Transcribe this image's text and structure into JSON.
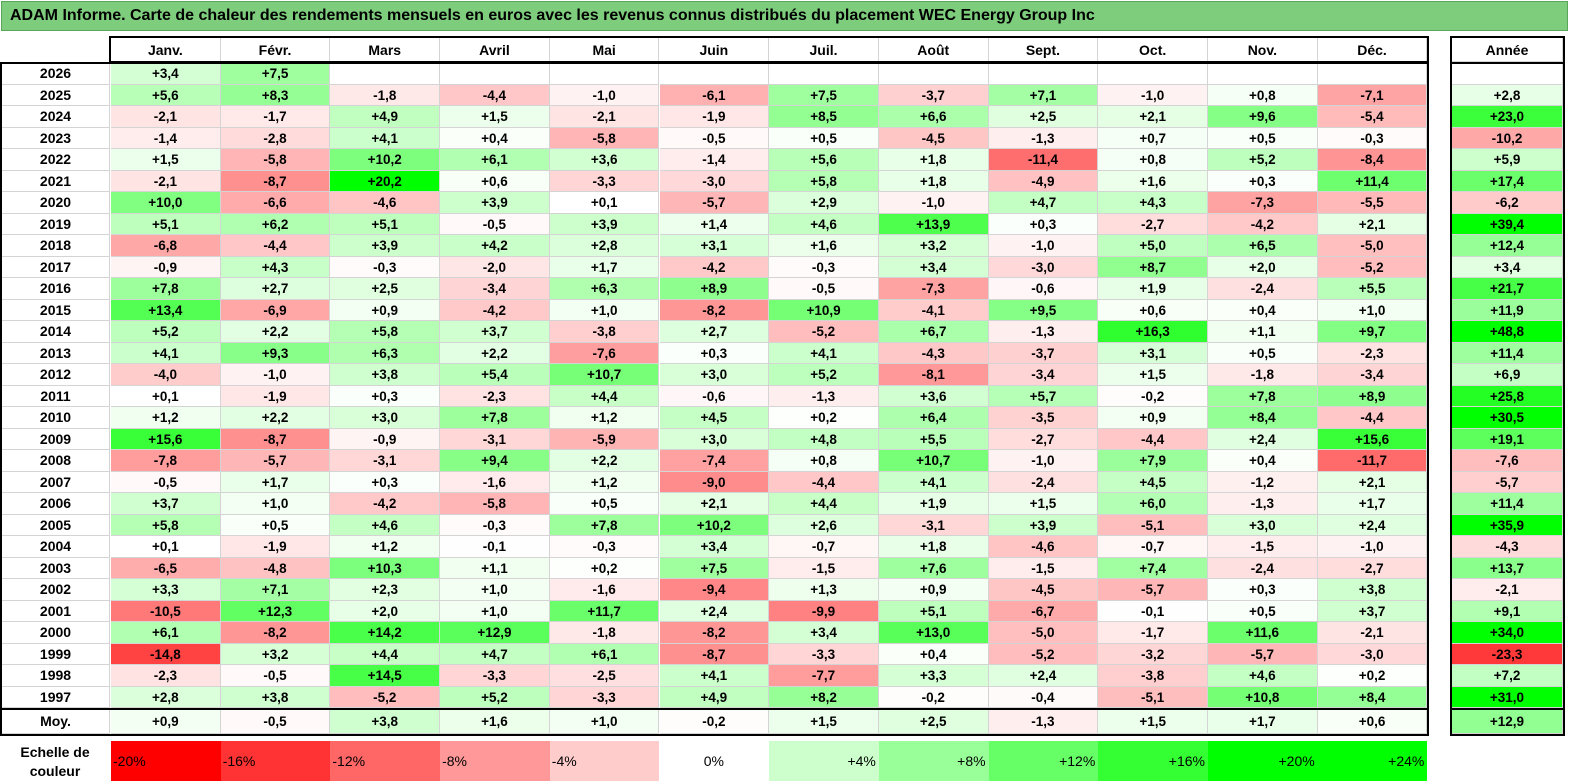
{
  "title": "ADAM Informe. Carte de chaleur des rendements mensuels en euros avec les revenus connus distribués du placement WEC Energy Group Inc",
  "chart_data": {
    "type": "heatmap",
    "months": [
      "Janv.",
      "Févr.",
      "Mars",
      "Avril",
      "Mai",
      "Juin",
      "Juil.",
      "Août",
      "Sept.",
      "Oct.",
      "Nov.",
      "Déc."
    ],
    "year_header": "Année",
    "avg_label": "Moy.",
    "rows": [
      {
        "year": "2026",
        "months": [
          "+3,4",
          "+7,5",
          null,
          null,
          null,
          null,
          null,
          null,
          null,
          null,
          null,
          null
        ],
        "annual": null
      },
      {
        "year": "2025",
        "months": [
          "+5,6",
          "+8,3",
          "-1,8",
          "-4,4",
          "-1,0",
          "-6,1",
          "+7,5",
          "-3,7",
          "+7,1",
          "-1,0",
          "+0,8",
          "-7,1"
        ],
        "annual": "+2,8"
      },
      {
        "year": "2024",
        "months": [
          "-2,1",
          "-1,7",
          "+4,9",
          "+1,5",
          "-2,1",
          "-1,9",
          "+8,5",
          "+6,6",
          "+2,5",
          "+2,1",
          "+9,6",
          "-5,4"
        ],
        "annual": "+23,0"
      },
      {
        "year": "2023",
        "months": [
          "-1,4",
          "-2,8",
          "+4,1",
          "+0,4",
          "-5,8",
          "-0,5",
          "+0,5",
          "-4,5",
          "-1,3",
          "+0,7",
          "+0,5",
          "-0,3"
        ],
        "annual": "-10,2"
      },
      {
        "year": "2022",
        "months": [
          "+1,5",
          "-5,8",
          "+10,2",
          "+6,1",
          "+3,6",
          "-1,4",
          "+5,6",
          "+1,8",
          "-11,4",
          "+0,8",
          "+5,2",
          "-8,4"
        ],
        "annual": "+5,9"
      },
      {
        "year": "2021",
        "months": [
          "-2,1",
          "-8,7",
          "+20,2",
          "+0,6",
          "-3,3",
          "-3,0",
          "+5,8",
          "+1,8",
          "-4,9",
          "+1,6",
          "+0,3",
          "+11,4"
        ],
        "annual": "+17,4"
      },
      {
        "year": "2020",
        "months": [
          "+10,0",
          "-6,6",
          "-4,6",
          "+3,9",
          "+0,1",
          "-5,7",
          "+2,9",
          "-1,0",
          "+4,7",
          "+4,3",
          "-7,3",
          "-5,5"
        ],
        "annual": "-6,2"
      },
      {
        "year": "2019",
        "months": [
          "+5,1",
          "+6,2",
          "+5,1",
          "-0,5",
          "+3,9",
          "+1,4",
          "+4,6",
          "+13,9",
          "+0,3",
          "-2,7",
          "-4,2",
          "+2,1"
        ],
        "annual": "+39,4"
      },
      {
        "year": "2018",
        "months": [
          "-6,8",
          "-4,4",
          "+3,9",
          "+4,2",
          "+2,8",
          "+3,1",
          "+1,6",
          "+3,2",
          "-1,0",
          "+5,0",
          "+6,5",
          "-5,0"
        ],
        "annual": "+12,4"
      },
      {
        "year": "2017",
        "months": [
          "-0,9",
          "+4,3",
          "-0,3",
          "-2,0",
          "+1,7",
          "-4,2",
          "-0,3",
          "+3,4",
          "-3,0",
          "+8,7",
          "+2,0",
          "-5,2"
        ],
        "annual": "+3,4"
      },
      {
        "year": "2016",
        "months": [
          "+7,8",
          "+2,7",
          "+2,5",
          "-3,4",
          "+6,3",
          "+8,9",
          "-0,5",
          "-7,3",
          "-0,6",
          "+1,9",
          "-2,4",
          "+5,5"
        ],
        "annual": "+21,7"
      },
      {
        "year": "2015",
        "months": [
          "+13,4",
          "-6,9",
          "+0,9",
          "-4,2",
          "+1,0",
          "-8,2",
          "+10,9",
          "-4,1",
          "+9,5",
          "+0,6",
          "+0,4",
          "+1,0"
        ],
        "annual": "+11,9"
      },
      {
        "year": "2014",
        "months": [
          "+5,2",
          "+2,2",
          "+5,8",
          "+3,7",
          "-3,8",
          "+2,7",
          "-5,2",
          "+6,7",
          "-1,3",
          "+16,3",
          "+1,1",
          "+9,7"
        ],
        "annual": "+48,8"
      },
      {
        "year": "2013",
        "months": [
          "+4,1",
          "+9,3",
          "+6,3",
          "+2,2",
          "-7,6",
          "+0,3",
          "+4,1",
          "-4,3",
          "-3,7",
          "+3,1",
          "+0,5",
          "-2,3"
        ],
        "annual": "+11,4"
      },
      {
        "year": "2012",
        "months": [
          "-4,0",
          "-1,0",
          "+3,8",
          "+5,4",
          "+10,7",
          "+3,0",
          "+5,2",
          "-8,1",
          "-3,4",
          "+1,5",
          "-1,8",
          "-3,4"
        ],
        "annual": "+6,9"
      },
      {
        "year": "2011",
        "months": [
          "+0,1",
          "-1,9",
          "+0,3",
          "-2,3",
          "+4,4",
          "-0,6",
          "-1,3",
          "+3,6",
          "+5,7",
          "-0,2",
          "+7,8",
          "+8,9"
        ],
        "annual": "+25,8"
      },
      {
        "year": "2010",
        "months": [
          "+1,2",
          "+2,2",
          "+3,0",
          "+7,8",
          "+1,2",
          "+4,5",
          "+0,2",
          "+6,4",
          "-3,5",
          "+0,9",
          "+8,4",
          "-4,4"
        ],
        "annual": "+30,5"
      },
      {
        "year": "2009",
        "months": [
          "+15,6",
          "-8,7",
          "-0,9",
          "-3,1",
          "-5,9",
          "+3,0",
          "+4,8",
          "+5,5",
          "-2,7",
          "-4,4",
          "+2,4",
          "+15,6"
        ],
        "annual": "+19,1"
      },
      {
        "year": "2008",
        "months": [
          "-7,8",
          "-5,7",
          "-3,1",
          "+9,4",
          "+2,2",
          "-7,4",
          "+0,8",
          "+10,7",
          "-1,0",
          "+7,9",
          "+0,4",
          "-11,7"
        ],
        "annual": "-7,6"
      },
      {
        "year": "2007",
        "months": [
          "-0,5",
          "+1,7",
          "+0,3",
          "-1,6",
          "+1,2",
          "-9,0",
          "-4,4",
          "+4,1",
          "-2,4",
          "+4,5",
          "-1,2",
          "+2,1"
        ],
        "annual": "-5,7"
      },
      {
        "year": "2006",
        "months": [
          "+3,7",
          "+1,0",
          "-4,2",
          "-5,8",
          "+0,5",
          "+2,1",
          "+4,4",
          "+1,9",
          "+1,5",
          "+6,0",
          "-1,3",
          "+1,7"
        ],
        "annual": "+11,4"
      },
      {
        "year": "2005",
        "months": [
          "+5,8",
          "+0,5",
          "+4,6",
          "-0,3",
          "+7,8",
          "+10,2",
          "+2,6",
          "-3,1",
          "+3,9",
          "-5,1",
          "+3,0",
          "+2,4"
        ],
        "annual": "+35,9"
      },
      {
        "year": "2004",
        "months": [
          "+0,1",
          "-1,9",
          "+1,2",
          "-0,1",
          "-0,3",
          "+3,4",
          "-0,7",
          "+1,8",
          "-4,6",
          "-0,7",
          "-1,5",
          "-1,0"
        ],
        "annual": "-4,3"
      },
      {
        "year": "2003",
        "months": [
          "-6,5",
          "-4,8",
          "+10,3",
          "+1,1",
          "+0,2",
          "+7,5",
          "-1,5",
          "+7,6",
          "-1,5",
          "+7,4",
          "-2,4",
          "-2,7"
        ],
        "annual": "+13,7"
      },
      {
        "year": "2002",
        "months": [
          "+3,3",
          "+7,1",
          "+2,3",
          "+1,0",
          "-1,6",
          "-9,4",
          "+1,3",
          "+0,9",
          "-4,5",
          "-5,7",
          "+0,3",
          "+3,8"
        ],
        "annual": "-2,1"
      },
      {
        "year": "2001",
        "months": [
          "-10,5",
          "+12,3",
          "+2,0",
          "+1,0",
          "+11,7",
          "+2,4",
          "-9,9",
          "+5,1",
          "-6,7",
          "-0,1",
          "+0,5",
          "+3,7"
        ],
        "annual": "+9,1"
      },
      {
        "year": "2000",
        "months": [
          "+6,1",
          "-8,2",
          "+14,2",
          "+12,9",
          "-1,8",
          "-8,2",
          "+3,4",
          "+13,0",
          "-5,0",
          "-1,7",
          "+11,6",
          "-2,1"
        ],
        "annual": "+34,0"
      },
      {
        "year": "1999",
        "months": [
          "-14,8",
          "+3,2",
          "+4,4",
          "+4,7",
          "+6,1",
          "-8,7",
          "-3,3",
          "+0,4",
          "-5,2",
          "-3,2",
          "-5,7",
          "-3,0"
        ],
        "annual": "-23,3"
      },
      {
        "year": "1998",
        "months": [
          "-2,3",
          "-0,5",
          "+14,5",
          "-3,3",
          "-2,5",
          "+4,1",
          "-7,7",
          "+3,3",
          "+2,4",
          "-3,8",
          "+4,6",
          "+0,2"
        ],
        "annual": "+7,2"
      },
      {
        "year": "1997",
        "months": [
          "+2,8",
          "+3,8",
          "-5,2",
          "+5,2",
          "-3,3",
          "+4,9",
          "+8,2",
          "-0,2",
          "-0,4",
          "-5,1",
          "+10,8",
          "+8,4"
        ],
        "annual": "+31,0"
      }
    ],
    "averages": {
      "months": [
        "+0,9",
        "-0,5",
        "+3,8",
        "+1,6",
        "+1,0",
        "-0,2",
        "+1,5",
        "+2,5",
        "-1,3",
        "+1,5",
        "+1,7",
        "+0,6"
      ],
      "annual": "+12,9"
    },
    "scale": {
      "label_line1": "Echelle de",
      "label_line2": "couleur",
      "steps": [
        {
          "label": "-20%",
          "value": -20
        },
        {
          "label": "-16%",
          "value": -16
        },
        {
          "label": "-12%",
          "value": -12
        },
        {
          "label": "-8%",
          "value": -8
        },
        {
          "label": "-4%",
          "value": -4
        },
        {
          "label": "0%",
          "value": 0
        },
        {
          "label": "+4%",
          "value": 4
        },
        {
          "label": "+8%",
          "value": 8
        },
        {
          "label": "+12%",
          "value": 12
        },
        {
          "label": "+16%",
          "value": 16
        },
        {
          "label": "+20%",
          "value": 20
        },
        {
          "label": "+24%",
          "value": 24
        }
      ]
    },
    "colors": {
      "negative": "#ff0000",
      "neutral": "#ffffff",
      "positive": "#00ff00",
      "title_bar": "#7dcd7d"
    }
  }
}
